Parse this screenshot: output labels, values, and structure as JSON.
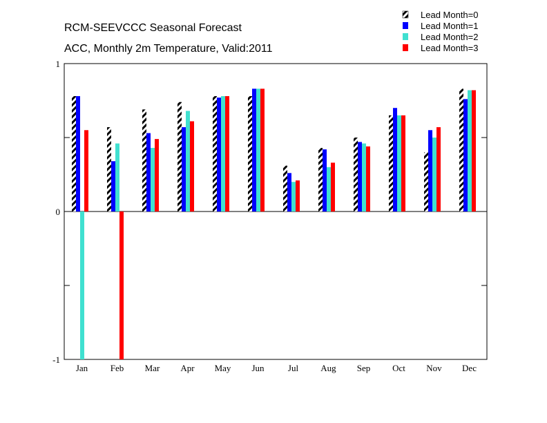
{
  "chart_data": {
    "type": "bar",
    "title": "RCM-SEEVCCC Seasonal Forecast",
    "subtitle": "ACC, Monthly 2m Temperature, Valid:2011",
    "categories": [
      "Jan",
      "Feb",
      "Mar",
      "Apr",
      "May",
      "Jun",
      "Jul",
      "Aug",
      "Sep",
      "Oct",
      "Nov",
      "Dec"
    ],
    "ylim": [
      -1,
      1
    ],
    "yticks": [
      -1,
      -0.5,
      0,
      0.5,
      1
    ],
    "ytick_labels": [
      "-1",
      "",
      "0",
      "",
      "1"
    ],
    "grid": false,
    "legend_position": "top-right",
    "series": [
      {
        "name": "Lead Month=0",
        "color": "#000000",
        "pattern": "hatched",
        "values": [
          0.78,
          0.57,
          0.69,
          0.74,
          0.78,
          0.78,
          0.31,
          0.43,
          0.5,
          0.65,
          0.4,
          0.83
        ]
      },
      {
        "name": "Lead Month=1",
        "color": "#0000ff",
        "pattern": "solid",
        "values": [
          0.78,
          0.34,
          0.53,
          0.57,
          0.77,
          0.83,
          0.26,
          0.42,
          0.47,
          0.7,
          0.55,
          0.76
        ]
      },
      {
        "name": "Lead Month=2",
        "color": "#40e0d0",
        "pattern": "solid",
        "values": [
          -1.0,
          0.46,
          0.43,
          0.68,
          0.78,
          0.83,
          0.2,
          0.3,
          0.46,
          0.65,
          0.5,
          0.82
        ]
      },
      {
        "name": "Lead Month=3",
        "color": "#ff0000",
        "pattern": "solid",
        "values": [
          0.55,
          -1.0,
          0.49,
          0.61,
          0.78,
          0.83,
          0.21,
          0.33,
          0.44,
          0.65,
          0.57,
          0.82
        ]
      }
    ]
  }
}
